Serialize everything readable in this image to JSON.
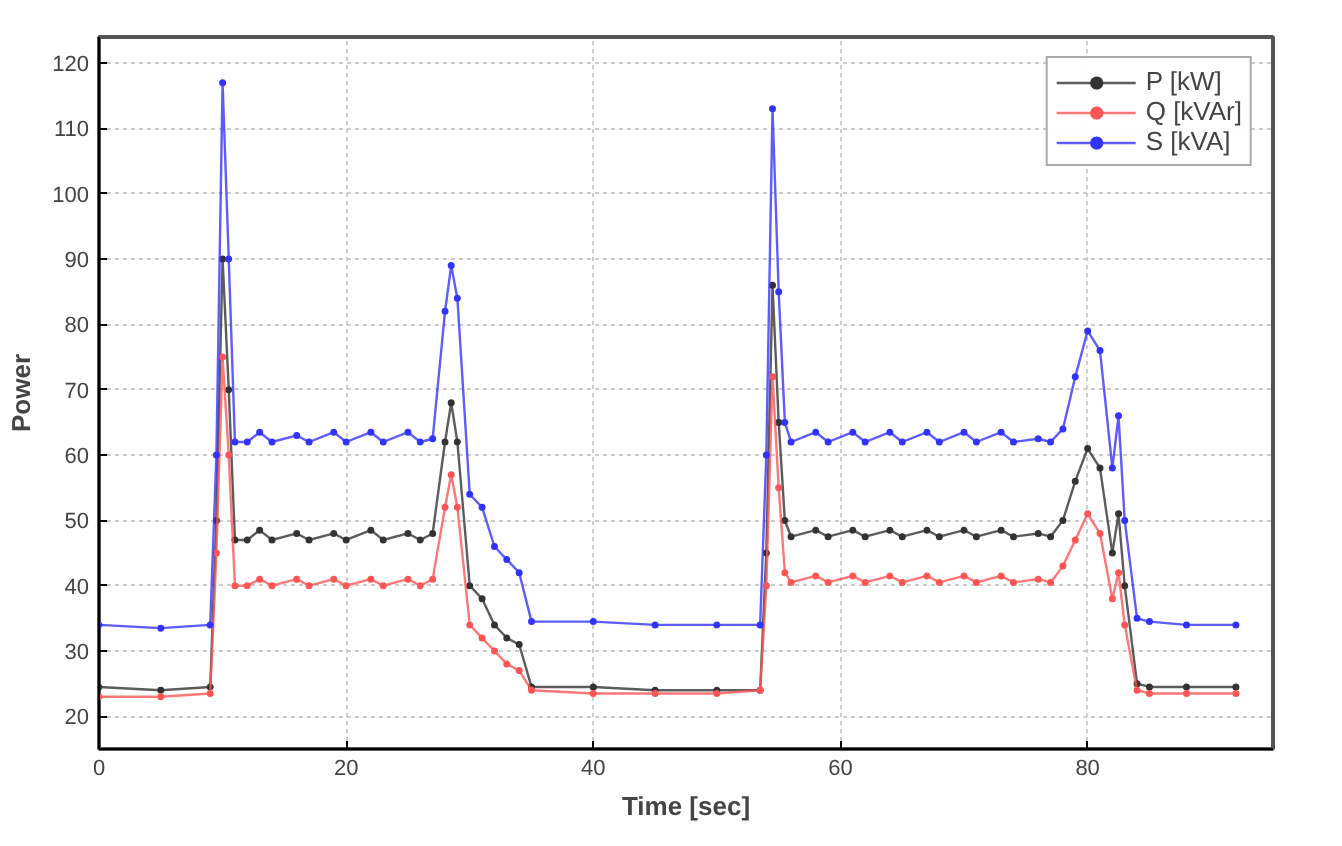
{
  "chart_data": {
    "type": "line",
    "xlabel": "Time [sec]",
    "ylabel": "Power",
    "x": [
      0,
      5,
      9,
      9.5,
      10,
      10.5,
      11,
      12,
      13,
      14,
      16,
      17,
      19,
      20,
      22,
      23,
      25,
      26,
      27,
      28,
      28.5,
      29,
      30,
      31,
      32,
      33,
      34,
      35,
      40,
      45,
      50,
      53.5,
      54,
      54.5,
      55,
      55.5,
      56,
      58,
      59,
      61,
      62,
      64,
      65,
      67,
      68,
      70,
      71,
      73,
      74,
      76,
      77,
      78,
      79,
      80,
      81,
      82,
      82.5,
      83,
      84,
      85,
      88,
      92
    ],
    "series": [
      {
        "name": "P [kW]",
        "color": "#333333",
        "values": [
          24.5,
          24,
          24.5,
          50,
          90,
          70,
          47,
          47,
          48.5,
          47,
          48,
          47,
          48,
          47,
          48.5,
          47,
          48,
          47,
          48,
          62,
          68,
          62,
          40,
          38,
          34,
          32,
          31,
          24.5,
          24.5,
          24,
          24,
          24,
          45,
          86,
          65,
          50,
          47.5,
          48.5,
          47.5,
          48.5,
          47.5,
          48.5,
          47.5,
          48.5,
          47.5,
          48.5,
          47.5,
          48.5,
          47.5,
          48,
          47.5,
          50,
          56,
          61,
          58,
          45,
          51,
          40,
          25,
          24.5,
          24.5,
          24.5
        ]
      },
      {
        "name": "Q [kVAr]",
        "color": "#ff5555",
        "values": [
          23,
          23,
          23.5,
          45,
          75,
          60,
          40,
          40,
          41,
          40,
          41,
          40,
          41,
          40,
          41,
          40,
          41,
          40,
          41,
          52,
          57,
          52,
          34,
          32,
          30,
          28,
          27,
          24,
          23.5,
          23.5,
          23.5,
          24,
          40,
          72,
          55,
          42,
          40.5,
          41.5,
          40.5,
          41.5,
          40.5,
          41.5,
          40.5,
          41.5,
          40.5,
          41.5,
          40.5,
          41.5,
          40.5,
          41,
          40.5,
          43,
          47,
          51,
          48,
          38,
          42,
          34,
          24,
          23.5,
          23.5,
          23.5
        ]
      },
      {
        "name": "S [kVA]",
        "color": "#3333ff",
        "values": [
          34,
          33.5,
          34,
          60,
          117,
          90,
          62,
          62,
          63.5,
          62,
          63,
          62,
          63.5,
          62,
          63.5,
          62,
          63.5,
          62,
          62.5,
          82,
          89,
          84,
          54,
          52,
          46,
          44,
          42,
          34.5,
          34.5,
          34,
          34,
          34,
          60,
          113,
          85,
          65,
          62,
          63.5,
          62,
          63.5,
          62,
          63.5,
          62,
          63.5,
          62,
          63.5,
          62,
          63.5,
          62,
          62.5,
          62,
          64,
          72,
          79,
          76,
          58,
          66,
          50,
          35,
          34.5,
          34,
          34
        ]
      }
    ],
    "xlim": [
      0,
      95
    ],
    "ylim": [
      15,
      124
    ],
    "xticks": [
      0,
      20,
      40,
      60,
      80
    ],
    "yticks": [
      20,
      30,
      40,
      50,
      60,
      70,
      80,
      90,
      100,
      110,
      120
    ],
    "grid": true,
    "legend": "top right",
    "marker": "circle",
    "line_style": "solid"
  }
}
